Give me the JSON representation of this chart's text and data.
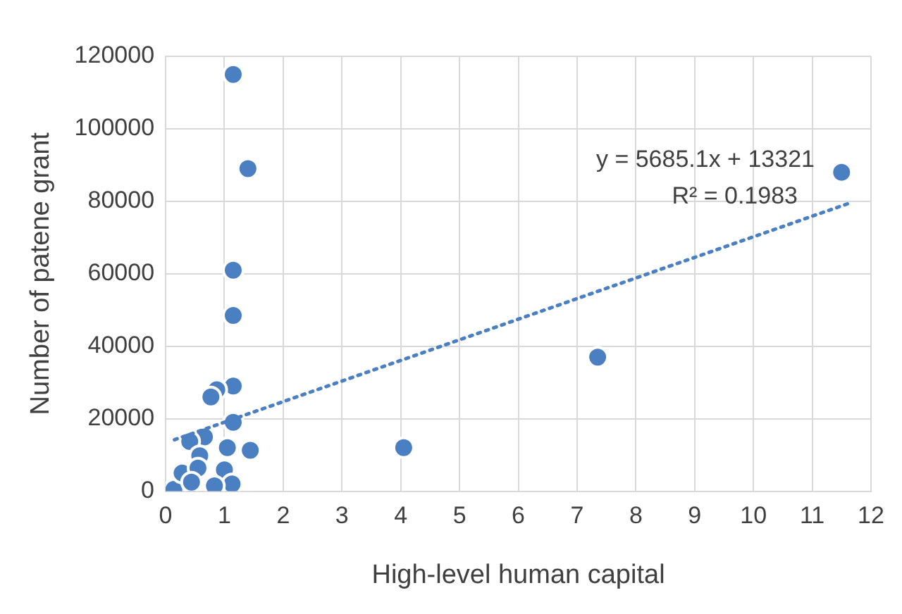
{
  "chart_data": {
    "type": "scatter",
    "xlabel": "High-level human capital",
    "ylabel": "Number of patene grant",
    "xlim": [
      0,
      12
    ],
    "xticks": [
      0,
      1,
      2,
      3,
      4,
      5,
      6,
      7,
      8,
      9,
      10,
      11,
      12
    ],
    "ylim": [
      0,
      120000
    ],
    "yticks": [
      0,
      20000,
      40000,
      60000,
      80000,
      100000,
      120000
    ],
    "grid": true,
    "legend": false,
    "marker": "circle",
    "series": [
      {
        "color": "#4a7fc1",
        "x": [
          1.15,
          1.4,
          1.15,
          1.15,
          1.15,
          1.15,
          1.44,
          1.05,
          4.05,
          7.35,
          11.5,
          0.14,
          0.87,
          0.77,
          0.66,
          0.41,
          0.58,
          0.28,
          0.55,
          1.0,
          1.13,
          0.83,
          0.44
        ],
        "values": [
          115000,
          89000,
          61000,
          48500,
          29000,
          19000,
          11300,
          12000,
          12000,
          37000,
          88000,
          500,
          28000,
          26000,
          15000,
          13700,
          9800,
          5000,
          6400,
          5900,
          2000,
          1500,
          2500
        ]
      },
      {
        "type": "line",
        "color": "#4a7fc1",
        "line_style": "dotted",
        "marker": "none",
        "x": [
          0.15,
          11.6
        ],
        "values": [
          14200,
          79300
        ]
      }
    ],
    "annotations": [
      "y = 5685.1x + 13321",
      "R² = 0.1983"
    ]
  }
}
